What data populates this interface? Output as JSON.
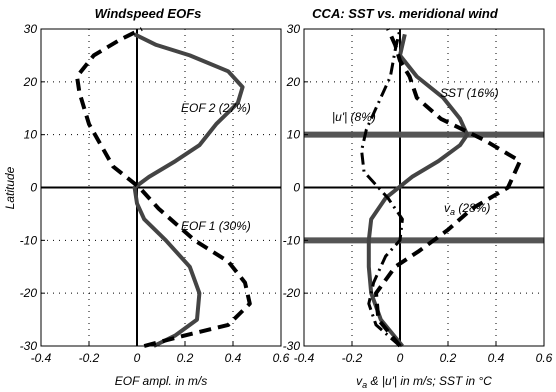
{
  "chart_data": [
    {
      "type": "line",
      "title": "Windspeed EOFs",
      "xlabel": "EOF ampl. in m/s",
      "ylabel": "Latitude",
      "xlim": [
        -0.4,
        0.6
      ],
      "ylim": [
        -30,
        30
      ],
      "xticks": [
        "-0.4",
        "-0.2",
        "0",
        "0.2",
        "0.4",
        "0.6"
      ],
      "yticks": [
        "-30",
        "-20",
        "-10",
        "0",
        "10",
        "20",
        "30"
      ],
      "grid": true,
      "series": [
        {
          "name": "EOF 1 (30%)",
          "style": "solid",
          "color": "#444444",
          "points": [
            [
              0.07,
              -30
            ],
            [
              0.16,
              -28
            ],
            [
              0.25,
              -25
            ],
            [
              0.26,
              -20
            ],
            [
              0.22,
              -15
            ],
            [
              0.12,
              -10
            ],
            [
              0.03,
              -6
            ],
            [
              0.0,
              -3
            ],
            [
              -0.01,
              0
            ],
            [
              0.05,
              2
            ],
            [
              0.16,
              5
            ],
            [
              0.26,
              8
            ],
            [
              0.33,
              12
            ],
            [
              0.42,
              16
            ],
            [
              0.44,
              19
            ],
            [
              0.38,
              22
            ],
            [
              0.22,
              25
            ],
            [
              0.08,
              27
            ],
            [
              -0.01,
              29
            ]
          ]
        },
        {
          "name": "EOF 2 (27%)",
          "style": "dashed",
          "color": "#000000",
          "points": [
            [
              0.03,
              -30
            ],
            [
              0.2,
              -28
            ],
            [
              0.38,
              -26
            ],
            [
              0.47,
              -22
            ],
            [
              0.45,
              -18
            ],
            [
              0.38,
              -14
            ],
            [
              0.24,
              -10
            ],
            [
              0.09,
              -4
            ],
            [
              0.01,
              0
            ],
            [
              -0.1,
              4
            ],
            [
              -0.15,
              8
            ],
            [
              -0.2,
              12
            ],
            [
              -0.22,
              15
            ],
            [
              -0.24,
              18
            ],
            [
              -0.25,
              21
            ],
            [
              -0.18,
              25
            ],
            [
              -0.07,
              28
            ],
            [
              0.02,
              30
            ]
          ]
        }
      ],
      "annotations": [
        "EOF 2 (27%)",
        "EOF 1 (30%)"
      ]
    },
    {
      "type": "line",
      "title": "CCA: SST vs. meridional wind",
      "xlabel": "v_a & |u'| in m/s; SST in °C",
      "xlim": [
        -0.4,
        0.6
      ],
      "ylim": [
        -30,
        30
      ],
      "xticks": [
        "-0.4",
        "-0.2",
        "0",
        "0.2",
        "0.4",
        "0.6"
      ],
      "yticks": [
        "-30",
        "-20",
        "-10",
        "0",
        "10",
        "20",
        "30"
      ],
      "grid": true,
      "hlines": [
        10,
        -10
      ],
      "series": [
        {
          "name": "SST (16%)",
          "style": "solid",
          "color": "#444444",
          "points": [
            [
              0.01,
              -30
            ],
            [
              -0.08,
              -25
            ],
            [
              -0.12,
              -20
            ],
            [
              -0.13,
              -15
            ],
            [
              -0.13,
              -10
            ],
            [
              -0.12,
              -6
            ],
            [
              -0.06,
              -2
            ],
            [
              0.05,
              2
            ],
            [
              0.16,
              5
            ],
            [
              0.25,
              8
            ],
            [
              0.28,
              10
            ],
            [
              0.25,
              13
            ],
            [
              0.18,
              17
            ],
            [
              0.07,
              21
            ],
            [
              0.0,
              25
            ],
            [
              0.02,
              29
            ]
          ]
        },
        {
          "name": "v_a (28%)",
          "style": "dashed",
          "color": "#000000",
          "points": [
            [
              0.0,
              -30
            ],
            [
              -0.09,
              -25
            ],
            [
              -0.1,
              -20
            ],
            [
              -0.02,
              -15
            ],
            [
              0.08,
              -12
            ],
            [
              0.2,
              -8
            ],
            [
              0.3,
              -4
            ],
            [
              0.45,
              0
            ],
            [
              0.5,
              5
            ],
            [
              0.35,
              9
            ],
            [
              0.17,
              13
            ],
            [
              0.07,
              17
            ],
            [
              0.04,
              21
            ],
            [
              0.0,
              24
            ],
            [
              -0.02,
              27
            ],
            [
              -0.05,
              30
            ]
          ]
        },
        {
          "name": "|u'| (8%)",
          "style": "dashdot",
          "color": "#000000",
          "points": [
            [
              0.0,
              -30
            ],
            [
              -0.1,
              -26
            ],
            [
              -0.13,
              -22
            ],
            [
              -0.11,
              -18
            ],
            [
              -0.06,
              -13
            ],
            [
              0.0,
              -10
            ],
            [
              0.01,
              -6
            ],
            [
              -0.05,
              -2
            ],
            [
              -0.15,
              3
            ],
            [
              -0.16,
              7
            ],
            [
              -0.14,
              11
            ],
            [
              -0.09,
              16
            ],
            [
              -0.04,
              21
            ],
            [
              -0.02,
              26
            ],
            [
              0.0,
              30
            ]
          ]
        }
      ],
      "annotations": [
        "SST (16%)",
        "|u'| (8%)",
        "v_a (28%)"
      ]
    }
  ]
}
